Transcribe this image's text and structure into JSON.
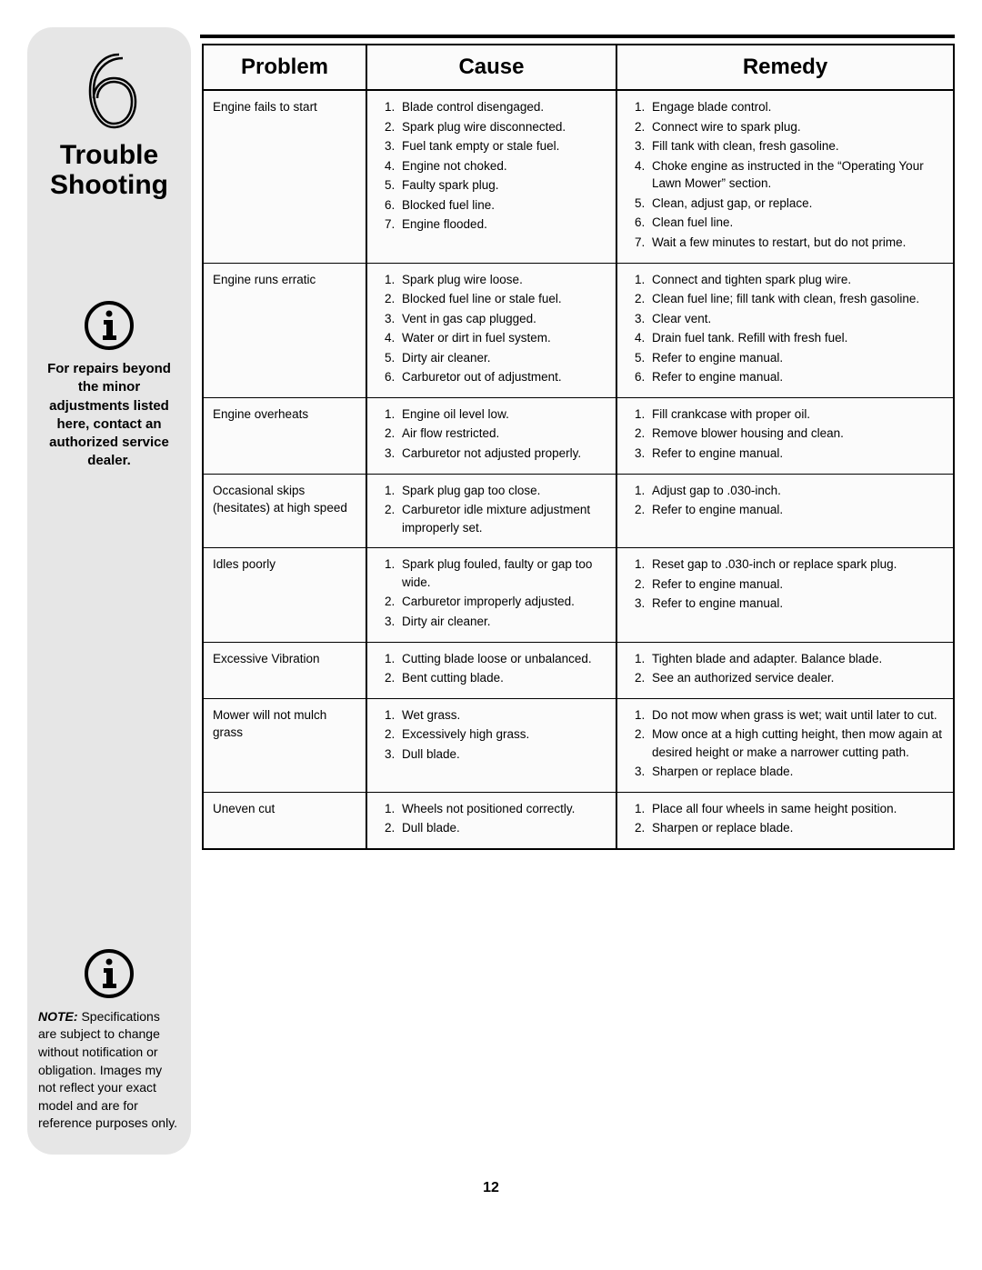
{
  "sidebar": {
    "section_number": "6",
    "title_line1": "Trouble",
    "title_line2": "Shooting",
    "callout": "For repairs beyond the minor adjustments listed here, contact an authorized service dealer.",
    "note_label": "NOTE:",
    "note_body": "Specifications are subject to change without notification or obligation. Images my not reflect your exact model and are for reference purposes only."
  },
  "table": {
    "headers": {
      "problem": "Problem",
      "cause": "Cause",
      "remedy": "Remedy"
    },
    "rows": [
      {
        "problem": "Engine fails to start",
        "causes": [
          "Blade control disengaged.",
          "Spark plug wire disconnected.",
          "Fuel tank empty or stale fuel.",
          "Engine not choked.",
          "Faulty spark plug.",
          "Blocked fuel line.",
          "Engine flooded."
        ],
        "remedies": [
          "Engage blade control.",
          "Connect wire to spark plug.",
          "Fill tank with clean, fresh gasoline.",
          "Choke engine as instructed in the “Operating Your Lawn Mower” section.",
          "Clean, adjust gap, or replace.",
          "Clean fuel line.",
          "Wait a few minutes to restart, but do not prime."
        ]
      },
      {
        "problem": "Engine runs erratic",
        "causes": [
          "Spark plug wire loose.",
          "Blocked fuel line or stale fuel.",
          "Vent in gas cap plugged.",
          "Water or dirt in fuel system.",
          "Dirty air cleaner.",
          "Carburetor out of adjustment."
        ],
        "remedies": [
          "Connect and tighten spark plug wire.",
          "Clean fuel line; fill tank with clean, fresh gasoline.",
          "Clear vent.",
          "Drain fuel tank. Refill with fresh fuel.",
          "Refer to engine manual.",
          "Refer to engine manual."
        ]
      },
      {
        "problem": "Engine overheats",
        "causes": [
          "Engine oil level low.",
          "Air flow restricted.",
          "Carburetor not adjusted properly."
        ],
        "remedies": [
          "Fill crankcase with proper oil.",
          "Remove blower housing and clean.",
          "Refer to engine manual."
        ]
      },
      {
        "problem": "Occasional skips (hesitates) at high speed",
        "causes": [
          "Spark plug gap too close.",
          "Carburetor idle mixture adjustment improperly set."
        ],
        "remedies": [
          "Adjust gap to .030-inch.",
          "Refer to engine manual."
        ]
      },
      {
        "problem": "Idles poorly",
        "causes": [
          "Spark plug fouled, faulty or gap too wide.",
          "Carburetor improperly adjusted.",
          "Dirty air cleaner."
        ],
        "remedies": [
          "Reset gap to .030-inch or replace spark plug.",
          "Refer to engine manual.",
          "Refer to engine manual."
        ]
      },
      {
        "problem": "Excessive Vibration",
        "causes": [
          "Cutting blade loose or unbalanced.",
          "Bent cutting blade."
        ],
        "remedies": [
          "Tighten blade and adapter. Balance blade.",
          "See an authorized service dealer."
        ]
      },
      {
        "problem": "Mower will not mulch grass",
        "causes": [
          "Wet grass.",
          "Excessively high grass.",
          "Dull blade."
        ],
        "remedies": [
          "Do not mow when grass is wet; wait until later to cut.",
          "Mow once at a high cutting height, then mow again at desired height or make a narrower cutting path.",
          "Sharpen or replace blade."
        ]
      },
      {
        "problem": "Uneven cut",
        "causes": [
          "Wheels not positioned correctly.",
          "Dull blade."
        ],
        "remedies": [
          "Place all four wheels in same height position.",
          "Sharpen or replace blade."
        ]
      }
    ]
  },
  "page_number": "12",
  "colors": {
    "sidebar_bg": "#e6e6e6",
    "rule": "#000000",
    "text": "#000000"
  }
}
